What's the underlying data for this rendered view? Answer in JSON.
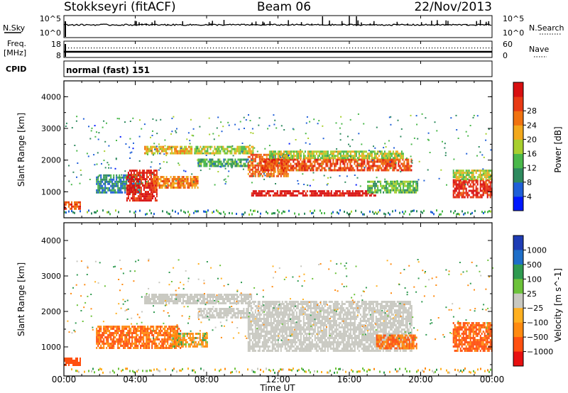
{
  "header": {
    "station": "Stokkseyri (fitACF)",
    "beam": "Beam 06",
    "date": "22/Nov/2013"
  },
  "strip_panels": {
    "nsky": {
      "left_label": "N.Sky",
      "right_label": "N.Search",
      "tick_top": "10^5",
      "tick_bottom": "10^0"
    },
    "freq": {
      "left_label_1": "Freq.",
      "left_label_2": "[MHz]",
      "right_label": "Nave",
      "left_tick_top": "18",
      "left_tick_bottom": "8",
      "right_tick_top": "60",
      "right_tick_bottom": "0"
    },
    "cpid": {
      "left_label": "CPID",
      "text": "normal (fast) 151"
    }
  },
  "chart_data": [
    {
      "type": "heatmap",
      "quantity": "Power",
      "ylabel": "Slant Range [km]",
      "ylim": [
        180,
        4500
      ],
      "yticks": [
        1000,
        2000,
        3000,
        4000
      ],
      "xlim": [
        0,
        24
      ],
      "colorbar": {
        "label": "Power [dB]",
        "ticks": [
          "4",
          "8",
          "12",
          "16",
          "20",
          "24",
          "28"
        ],
        "range": [
          0,
          30
        ],
        "colors": [
          "#0018ff",
          "#1f5fd8",
          "#2e8a5e",
          "#4ab84a",
          "#a8cf2e",
          "#f2a81c",
          "#f07210",
          "#e83a14",
          "#d80f10"
        ]
      },
      "echo_regions": [
        {
          "t": [
            0.0,
            0.9
          ],
          "r": [
            480,
            700
          ],
          "level": 24
        },
        {
          "t": [
            1.8,
            4.3
          ],
          "r": [
            950,
            1550
          ],
          "level": 8
        },
        {
          "t": [
            3.5,
            5.2
          ],
          "r": [
            750,
            1700
          ],
          "level": 27
        },
        {
          "t": [
            5.0,
            7.5
          ],
          "r": [
            1100,
            1500
          ],
          "level": 21
        },
        {
          "t": [
            4.5,
            7.2
          ],
          "r": [
            2200,
            2450
          ],
          "level": 18
        },
        {
          "t": [
            7.3,
            10.6
          ],
          "r": [
            2200,
            2450
          ],
          "level": 15
        },
        {
          "t": [
            7.5,
            10.3
          ],
          "r": [
            1800,
            2050
          ],
          "level": 10
        },
        {
          "t": [
            10.3,
            12.6
          ],
          "r": [
            1500,
            2200
          ],
          "level": 22
        },
        {
          "t": [
            11.0,
            19.5
          ],
          "r": [
            1700,
            2050
          ],
          "level": 24
        },
        {
          "t": [
            11.5,
            19.0
          ],
          "r": [
            2050,
            2300
          ],
          "level": 15
        },
        {
          "t": [
            10.5,
            17.5
          ],
          "r": [
            850,
            1050
          ],
          "level": 29
        },
        {
          "t": [
            17.0,
            19.8
          ],
          "r": [
            950,
            1350
          ],
          "level": 12
        },
        {
          "t": [
            21.8,
            24.0
          ],
          "r": [
            850,
            1400
          ],
          "level": 27
        },
        {
          "t": [
            21.8,
            24.0
          ],
          "r": [
            1400,
            1700
          ],
          "level": 15
        }
      ]
    },
    {
      "type": "heatmap",
      "quantity": "Velocity",
      "ylabel": "Slant Range [km]",
      "xlabel": "Time UT",
      "ylim": [
        180,
        4500
      ],
      "yticks": [
        1000,
        2000,
        3000,
        4000
      ],
      "xlim": [
        0,
        24
      ],
      "xticks": [
        "00:00",
        "04:00",
        "08:00",
        "12:00",
        "16:00",
        "20:00",
        "00:00"
      ],
      "colorbar": {
        "label": "Velocity [m s^-1]",
        "ticks": [
          "1000",
          "500",
          "100",
          "25",
          "−25",
          "−100",
          "−500",
          "−1000"
        ],
        "colors": [
          "#1e3cb4",
          "#1e6ec8",
          "#2f9a50",
          "#6cc23a",
          "#c8c8c0",
          "#ffb020",
          "#ff8a10",
          "#ff5010",
          "#e81010"
        ]
      },
      "echo_regions": [
        {
          "t": [
            0.0,
            0.9
          ],
          "r": [
            480,
            700
          ],
          "level": -500
        },
        {
          "t": [
            1.8,
            6.5
          ],
          "r": [
            950,
            1600
          ],
          "level": -300
        },
        {
          "t": [
            6.0,
            8.0
          ],
          "r": [
            1000,
            1400
          ],
          "level": -100
        },
        {
          "t": [
            4.5,
            10.5
          ],
          "r": [
            2200,
            2500
          ],
          "level": 0
        },
        {
          "t": [
            7.5,
            10.3
          ],
          "r": [
            1800,
            2100
          ],
          "level": 0
        },
        {
          "t": [
            10.3,
            19.5
          ],
          "r": [
            900,
            2300
          ],
          "level": 0
        },
        {
          "t": [
            17.5,
            19.8
          ],
          "r": [
            950,
            1350
          ],
          "level": -300
        },
        {
          "t": [
            21.8,
            24.0
          ],
          "r": [
            900,
            1700
          ],
          "level": -400
        }
      ]
    }
  ]
}
